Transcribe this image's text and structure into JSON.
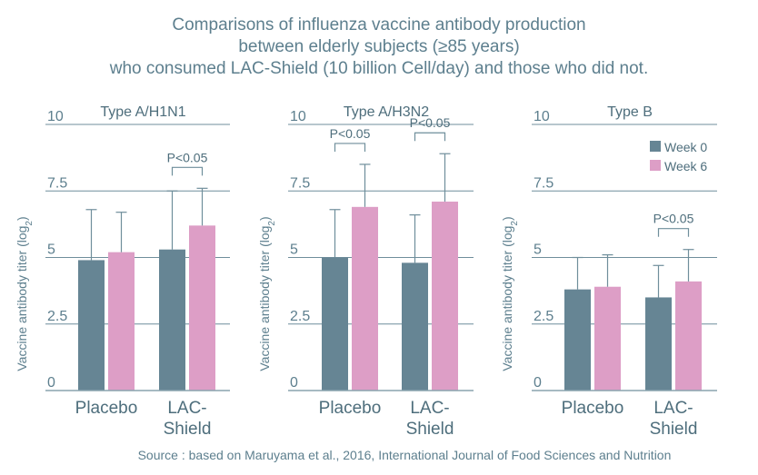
{
  "title": [
    "Comparisons of influenza vaccine antibody production",
    "between elderly subjects (≥85 years)",
    "who consumed LAC-Shield (10 billion Cell/day) and those who did not."
  ],
  "source": "Source : based on Maruyama et al., 2016, International Journal of Food Sciences and Nutrition",
  "colors": {
    "week0": "#668594",
    "week6": "#dd9ec6",
    "grid": "#6f8e9b",
    "axis": "#8aa4ae",
    "text": "#5d7f8e"
  },
  "legend": {
    "placement": "top-right of Type B panel",
    "items": [
      "Week 0",
      "Week 6"
    ]
  },
  "chart_data": [
    {
      "type": "bar",
      "title": "Type A/H1N1",
      "ylabel": "Vaccine antibody titer (log2)",
      "ylim": [
        0,
        10
      ],
      "yticks": [
        "0",
        "2.5",
        "5",
        "7.5",
        "10"
      ],
      "categories": [
        "Placebo",
        "LAC-Shield"
      ],
      "series": [
        {
          "name": "Week 0",
          "values": [
            4.9,
            5.3
          ],
          "errors": [
            1.9,
            2.2
          ]
        },
        {
          "name": "Week 6",
          "values": [
            5.2,
            6.2
          ],
          "errors": [
            1.5,
            1.4
          ]
        }
      ],
      "significance": [
        {
          "category": "LAC-Shield",
          "label": "P<0.05"
        }
      ],
      "grid": true
    },
    {
      "type": "bar",
      "title": "Type A/H3N2",
      "ylabel": "Vaccine antibody titer (log2)",
      "ylim": [
        0,
        10
      ],
      "yticks": [
        "0",
        "2.5",
        "5",
        "7.5",
        "10"
      ],
      "categories": [
        "Placebo",
        "LAC-Shield"
      ],
      "series": [
        {
          "name": "Week 0",
          "values": [
            5.0,
            4.8
          ],
          "errors": [
            1.8,
            1.8
          ]
        },
        {
          "name": "Week 6",
          "values": [
            6.9,
            7.1
          ],
          "errors": [
            1.6,
            1.8
          ]
        }
      ],
      "significance": [
        {
          "category": "Placebo",
          "label": "P<0.05"
        },
        {
          "category": "LAC-Shield",
          "label": "P<0.05"
        }
      ],
      "grid": true
    },
    {
      "type": "bar",
      "title": "Type B",
      "ylabel": "Vaccine antibody titer (log2)",
      "ylim": [
        0,
        10
      ],
      "yticks": [
        "0",
        "2.5",
        "5",
        "7.5",
        "10"
      ],
      "categories": [
        "Placebo",
        "LAC-Shield"
      ],
      "series": [
        {
          "name": "Week 0",
          "values": [
            3.8,
            3.5
          ],
          "errors": [
            1.2,
            1.2
          ]
        },
        {
          "name": "Week 6",
          "values": [
            3.9,
            4.1
          ],
          "errors": [
            1.2,
            1.2
          ]
        }
      ],
      "significance": [
        {
          "category": "LAC-Shield",
          "label": "P<0.05"
        }
      ],
      "grid": true
    }
  ]
}
